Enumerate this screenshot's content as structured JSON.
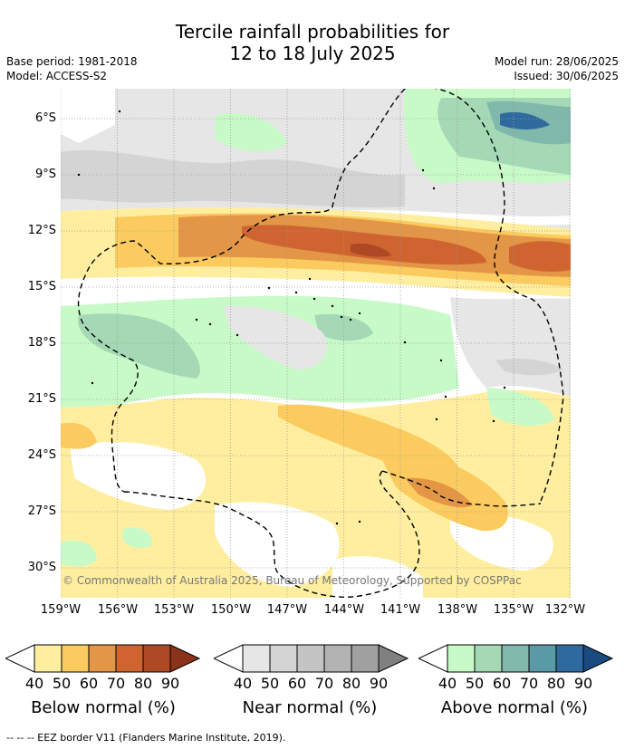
{
  "title_line1": "Tercile rainfall probabilities for",
  "title_line2": "12 to 18 July 2025",
  "base_period": "Base period: 1981-2018",
  "model": "Model: ACCESS-S2",
  "model_run": "Model run: 28/06/2025",
  "issued": "Issued: 30/06/2025",
  "copyright": "© Commonwealth of Australia 2025, Bureau of Meteorology, Supported by COSPPac",
  "lat_labels": [
    "6°S",
    "9°S",
    "12°S",
    "15°S",
    "18°S",
    "21°S",
    "24°S",
    "27°S",
    "30°S"
  ],
  "lon_labels": [
    "159°W",
    "156°W",
    "153°W",
    "150°W",
    "147°W",
    "144°W",
    "141°W",
    "138°W",
    "135°W",
    "132°W"
  ],
  "legend": {
    "ticks": [
      "40",
      "50",
      "60",
      "70",
      "80",
      "90"
    ],
    "below": {
      "label": "Below normal (%)",
      "colors": [
        "#ffeea0",
        "#fccb5f",
        "#e29646",
        "#cf6431",
        "#ad4a25",
        "#8a331a"
      ]
    },
    "near": {
      "label": "Near normal (%)",
      "colors": [
        "#e6e6e6",
        "#d4d4d4",
        "#c4c4c4",
        "#b3b3b3",
        "#a0a0a0",
        "#808080"
      ]
    },
    "above": {
      "label": "Above normal (%)",
      "colors": [
        "#c8fac8",
        "#a5d9b6",
        "#80b8ac",
        "#5a9aa6",
        "#2f6a9f",
        "#1a4b80"
      ]
    }
  },
  "footnote": "--  --  -- EEZ border V11 (Flanders Marine Institute, 2019)."
}
